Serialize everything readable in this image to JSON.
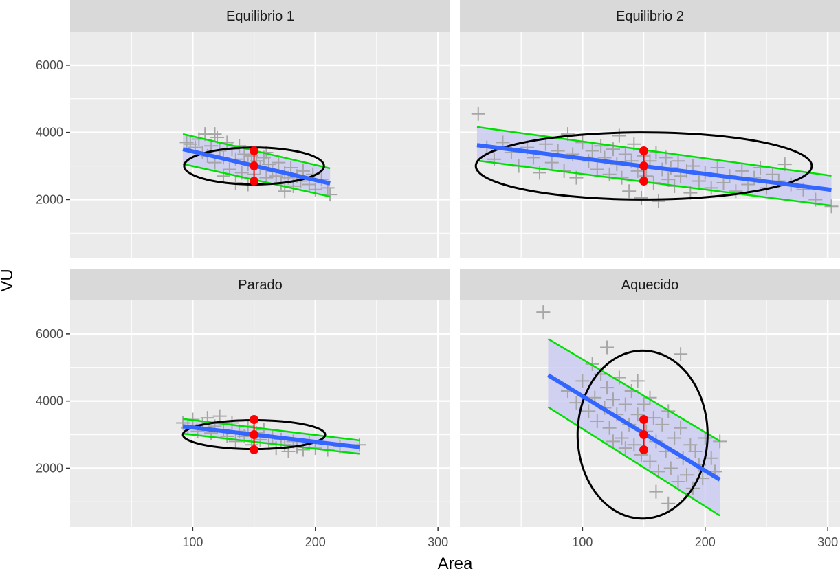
{
  "chart_data": {
    "type": "scatter",
    "xlabel": "Area",
    "ylabel": "VU",
    "xlim": [
      0,
      310
    ],
    "ylim": [
      250,
      7000
    ],
    "x_ticks": [
      100,
      200,
      300
    ],
    "y_ticks": [
      2000,
      4000,
      6000
    ],
    "grid": true,
    "colors": {
      "points": "#a6a6a6",
      "fit_line": "#3366ff",
      "confidence_band": "#c9c9f2",
      "limit_lines": "#00e000",
      "ellipse": "#000000",
      "markers": "#ff0000",
      "panel_bg": "#ebebeb",
      "strip_bg": "#d9d9d9",
      "grid": "#ffffff"
    },
    "panels": [
      {
        "title": "Equilibrio 1",
        "fit_range": [
          92,
          212
        ],
        "fit_line": [
          [
            92,
            3500
          ],
          [
            212,
            2480
          ]
        ],
        "upper_line": [
          [
            92,
            3950
          ],
          [
            212,
            2930
          ]
        ],
        "lower_line": [
          [
            92,
            3060
          ],
          [
            212,
            2090
          ]
        ],
        "ellipse": {
          "cx": 150,
          "cy": 3000,
          "rx": 57,
          "ry": 550,
          "rot": -0.72
        },
        "markers": [
          [
            150,
            3450
          ],
          [
            150,
            3000
          ],
          [
            150,
            2550
          ]
        ],
        "points": [
          [
            95,
            3700
          ],
          [
            98,
            3650
          ],
          [
            102,
            3550
          ],
          [
            105,
            3800
          ],
          [
            108,
            3400
          ],
          [
            110,
            3950
          ],
          [
            112,
            3300
          ],
          [
            115,
            3600
          ],
          [
            118,
            3100
          ],
          [
            120,
            3850
          ],
          [
            122,
            3450
          ],
          [
            125,
            3250
          ],
          [
            128,
            3700
          ],
          [
            130,
            2900
          ],
          [
            132,
            3500
          ],
          [
            135,
            3200
          ],
          [
            138,
            3600
          ],
          [
            140,
            2800
          ],
          [
            142,
            3350
          ],
          [
            145,
            3050
          ],
          [
            148,
            3300
          ],
          [
            150,
            2750
          ],
          [
            152,
            3150
          ],
          [
            155,
            2950
          ],
          [
            158,
            3250
          ],
          [
            160,
            2650
          ],
          [
            162,
            3050
          ],
          [
            165,
            2850
          ],
          [
            168,
            2700
          ],
          [
            170,
            3100
          ],
          [
            172,
            2500
          ],
          [
            175,
            2800
          ],
          [
            178,
            2650
          ],
          [
            180,
            2950
          ],
          [
            182,
            2400
          ],
          [
            185,
            2700
          ],
          [
            188,
            2550
          ],
          [
            190,
            2850
          ],
          [
            195,
            2450
          ],
          [
            198,
            2750
          ],
          [
            200,
            2300
          ],
          [
            205,
            2600
          ],
          [
            210,
            2350
          ],
          [
            212,
            2150
          ],
          [
            125,
            2700
          ],
          [
            135,
            2500
          ],
          [
            160,
            3400
          ],
          [
            118,
            3950
          ],
          [
            145,
            2450
          ],
          [
            175,
            2250
          ]
        ]
      },
      {
        "title": "Equilibrio 2",
        "fit_range": [
          14,
          303
        ],
        "fit_line": [
          [
            14,
            3620
          ],
          [
            303,
            2290
          ]
        ],
        "upper_line": [
          [
            14,
            4160
          ],
          [
            303,
            2710
          ]
        ],
        "lower_line": [
          [
            14,
            3160
          ],
          [
            303,
            1820
          ]
        ],
        "ellipse": {
          "cx": 150,
          "cy": 3000,
          "rx": 137,
          "ry": 1000,
          "rot": -0.24
        },
        "markers": [
          [
            150,
            3450
          ],
          [
            150,
            3000
          ],
          [
            150,
            2550
          ]
        ],
        "points": [
          [
            15,
            4550
          ],
          [
            22,
            3550
          ],
          [
            28,
            3200
          ],
          [
            35,
            3700
          ],
          [
            42,
            3400
          ],
          [
            48,
            3000
          ],
          [
            55,
            3550
          ],
          [
            60,
            3250
          ],
          [
            65,
            2800
          ],
          [
            70,
            3650
          ],
          [
            75,
            3100
          ],
          [
            80,
            3450
          ],
          [
            85,
            2850
          ],
          [
            88,
            3950
          ],
          [
            92,
            3350
          ],
          [
            95,
            2650
          ],
          [
            100,
            3700
          ],
          [
            105,
            3150
          ],
          [
            108,
            3450
          ],
          [
            112,
            2900
          ],
          [
            115,
            3600
          ],
          [
            118,
            3250
          ],
          [
            122,
            2750
          ],
          [
            125,
            3500
          ],
          [
            128,
            3050
          ],
          [
            130,
            3900
          ],
          [
            132,
            2650
          ],
          [
            135,
            3350
          ],
          [
            138,
            2250
          ],
          [
            140,
            3150
          ],
          [
            142,
            3650
          ],
          [
            145,
            2850
          ],
          [
            148,
            2050
          ],
          [
            150,
            3300
          ],
          [
            152,
            2700
          ],
          [
            155,
            3150
          ],
          [
            158,
            2500
          ],
          [
            160,
            3400
          ],
          [
            162,
            1950
          ],
          [
            165,
            2900
          ],
          [
            168,
            3250
          ],
          [
            170,
            2600
          ],
          [
            172,
            2950
          ],
          [
            175,
            2400
          ],
          [
            178,
            3150
          ],
          [
            180,
            2700
          ],
          [
            185,
            2850
          ],
          [
            188,
            2200
          ],
          [
            190,
            3000
          ],
          [
            195,
            2550
          ],
          [
            200,
            2800
          ],
          [
            205,
            2350
          ],
          [
            210,
            2950
          ],
          [
            215,
            2500
          ],
          [
            220,
            2700
          ],
          [
            225,
            2250
          ],
          [
            230,
            2850
          ],
          [
            235,
            2450
          ],
          [
            240,
            2650
          ],
          [
            245,
            2950
          ],
          [
            250,
            2350
          ],
          [
            255,
            2750
          ],
          [
            260,
            2550
          ],
          [
            265,
            3050
          ],
          [
            270,
            2450
          ],
          [
            280,
            2300
          ],
          [
            290,
            2000
          ],
          [
            303,
            1800
          ]
        ]
      },
      {
        "title": "Parado",
        "fit_range": [
          92,
          236
        ],
        "fit_line": [
          [
            92,
            3250
          ],
          [
            236,
            2630
          ]
        ],
        "upper_line": [
          [
            92,
            3470
          ],
          [
            236,
            2830
          ]
        ],
        "lower_line": [
          [
            92,
            3030
          ],
          [
            236,
            2430
          ]
        ],
        "ellipse": {
          "cx": 150,
          "cy": 3000,
          "rx": 58,
          "ry": 430,
          "rot": -0.2
        },
        "markers": [
          [
            150,
            3450
          ],
          [
            150,
            3000
          ],
          [
            150,
            2550
          ]
        ],
        "points": [
          [
            92,
            3350
          ],
          [
            96,
            3200
          ],
          [
            100,
            3450
          ],
          [
            104,
            3100
          ],
          [
            108,
            3300
          ],
          [
            112,
            3500
          ],
          [
            115,
            3050
          ],
          [
            118,
            3250
          ],
          [
            122,
            3550
          ],
          [
            125,
            3150
          ],
          [
            128,
            2950
          ],
          [
            132,
            3350
          ],
          [
            135,
            2800
          ],
          [
            138,
            3100
          ],
          [
            142,
            2950
          ],
          [
            145,
            3250
          ],
          [
            148,
            2700
          ],
          [
            152,
            3050
          ],
          [
            155,
            2850
          ],
          [
            158,
            3150
          ],
          [
            162,
            2750
          ],
          [
            165,
            2950
          ],
          [
            168,
            2600
          ],
          [
            172,
            2850
          ],
          [
            175,
            2700
          ],
          [
            178,
            2500
          ],
          [
            182,
            2800
          ],
          [
            185,
            2650
          ],
          [
            190,
            2550
          ],
          [
            195,
            2750
          ],
          [
            200,
            2600
          ],
          [
            210,
            2550
          ],
          [
            220,
            2650
          ],
          [
            236,
            2700
          ]
        ]
      },
      {
        "title": "Aquecido",
        "fit_range": [
          72,
          212
        ],
        "fit_line": [
          [
            72,
            4770
          ],
          [
            212,
            1660
          ]
        ],
        "upper_line": [
          [
            72,
            5850
          ],
          [
            212,
            2810
          ]
        ],
        "lower_line": [
          [
            72,
            3820
          ],
          [
            212,
            590
          ]
        ],
        "ellipse": {
          "cx": 149,
          "cy": 3000,
          "rx": 53,
          "ry": 2500,
          "rot": -0.6
        },
        "markers": [
          [
            150,
            3450
          ],
          [
            150,
            3000
          ],
          [
            150,
            2550
          ]
        ],
        "points": [
          [
            68,
            6650
          ],
          [
            120,
            5600
          ],
          [
            180,
            5400
          ],
          [
            88,
            4300
          ],
          [
            95,
            3950
          ],
          [
            100,
            4600
          ],
          [
            105,
            3700
          ],
          [
            108,
            5100
          ],
          [
            110,
            4100
          ],
          [
            112,
            3400
          ],
          [
            115,
            4800
          ],
          [
            118,
            3800
          ],
          [
            120,
            4400
          ],
          [
            122,
            3200
          ],
          [
            125,
            4050
          ],
          [
            128,
            3600
          ],
          [
            130,
            4700
          ],
          [
            132,
            2900
          ],
          [
            135,
            3900
          ],
          [
            138,
            3300
          ],
          [
            140,
            4300
          ],
          [
            142,
            2700
          ],
          [
            145,
            3600
          ],
          [
            148,
            2400
          ],
          [
            150,
            3900
          ],
          [
            152,
            3100
          ],
          [
            155,
            2200
          ],
          [
            158,
            3500
          ],
          [
            160,
            2800
          ],
          [
            162,
            1900
          ],
          [
            165,
            3300
          ],
          [
            168,
            2500
          ],
          [
            170,
            3700
          ],
          [
            172,
            2000
          ],
          [
            175,
            2900
          ],
          [
            178,
            1600
          ],
          [
            180,
            3200
          ],
          [
            182,
            2300
          ],
          [
            185,
            1800
          ],
          [
            188,
            2700
          ],
          [
            190,
            1400
          ],
          [
            192,
            2500
          ],
          [
            195,
            2100
          ],
          [
            198,
            1700
          ],
          [
            200,
            2900
          ],
          [
            205,
            2300
          ],
          [
            208,
            1900
          ],
          [
            212,
            2800
          ],
          [
            170,
            950
          ],
          [
            160,
            1300
          ],
          [
            135,
            2600
          ],
          [
            145,
            4600
          ],
          [
            125,
            2800
          ],
          [
            155,
            4100
          ]
        ]
      }
    ]
  }
}
